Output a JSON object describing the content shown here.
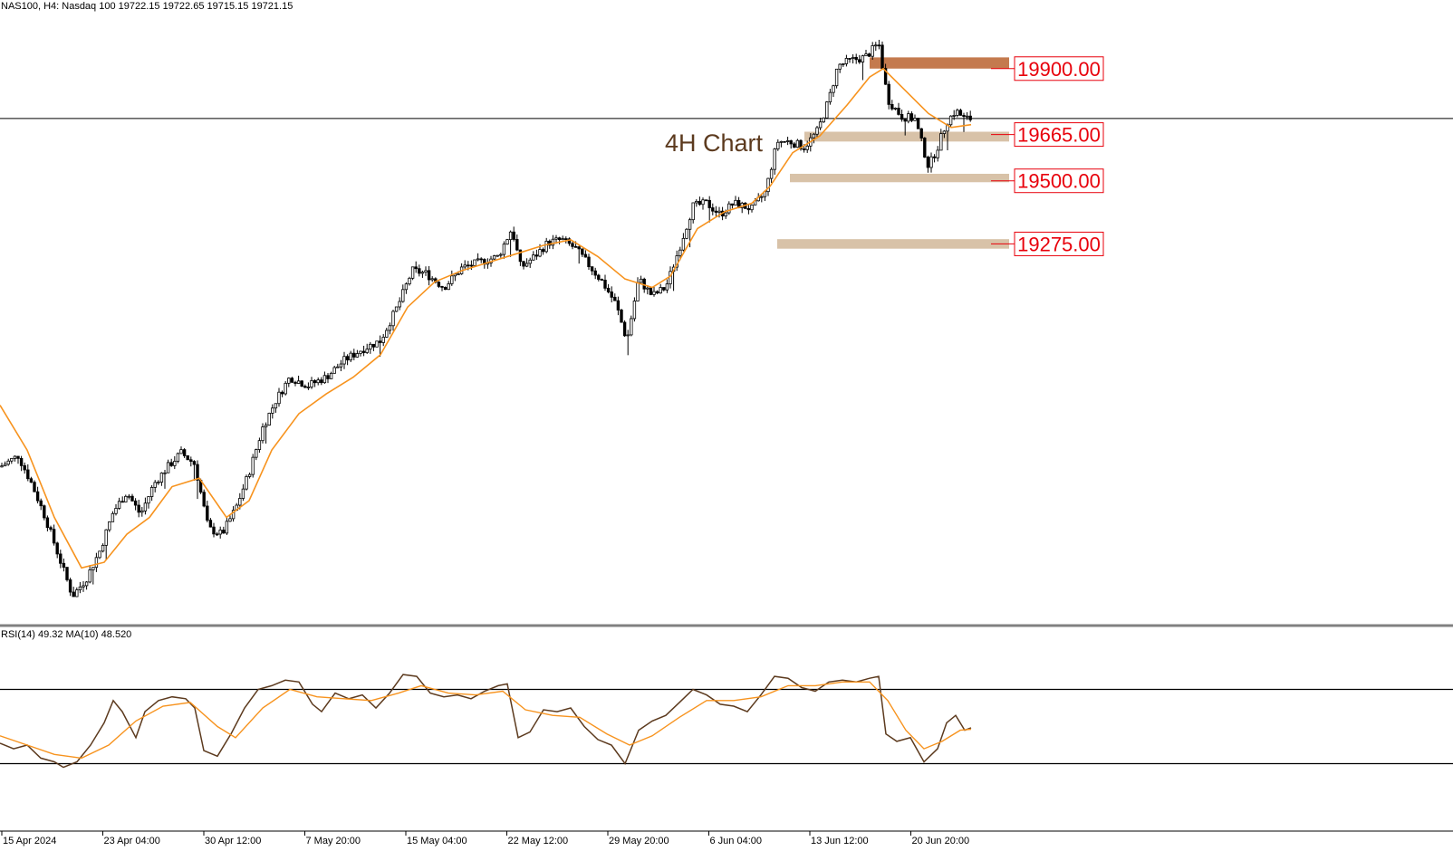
{
  "header": {
    "symbol_line": "NAS100, H4:  Nasdaq 100  19722.15 19722.65 19715.15 19721.15"
  },
  "annotation": "4H Chart",
  "colors": {
    "background": "#ffffff",
    "candle": "#000000",
    "ma_line": "#f7931e",
    "rsi_line": "#5c3a1e",
    "rsi_ma_line": "#f7931e",
    "zone_light": "#d8c2a8",
    "zone_dark": "#c47a4e",
    "level_text": "#e8000b",
    "annotation_text": "#5c3a1e",
    "separator": "#808080"
  },
  "chart_data": [
    {
      "type": "candlestick",
      "symbol": "NAS100",
      "timeframe": "H4",
      "ylim": [
        17950,
        20080
      ],
      "moving_average": "orange line",
      "price_levels": [
        {
          "label": "19900.00",
          "value": 19900,
          "zone": [
            19900,
            19940
          ],
          "style": "dark"
        },
        {
          "label": "19665.00",
          "value": 19665,
          "zone": [
            19640,
            19675
          ],
          "style": "light"
        },
        {
          "label": "19500.00",
          "value": 19500,
          "zone": [
            19495,
            19525
          ],
          "style": "light"
        },
        {
          "label": "19275.00",
          "value": 19275,
          "zone": [
            19258,
            19292
          ],
          "style": "light"
        }
      ],
      "horizontal_line": 19722,
      "x_ticks": [
        "15 Apr 2024",
        "23 Apr 04:00",
        "30 Apr 12:00",
        "7 May 20:00",
        "15 May 04:00",
        "22 May 12:00",
        "29 May 20:00",
        "6 Jun 04:00",
        "13 Jun 12:00",
        "20 Jun 20:00"
      ],
      "close_path": [
        [
          0,
          18480
        ],
        [
          20,
          18520
        ],
        [
          35,
          18420
        ],
        [
          50,
          18300
        ],
        [
          65,
          18160
        ],
        [
          80,
          18020
        ],
        [
          95,
          18080
        ],
        [
          110,
          18180
        ],
        [
          125,
          18320
        ],
        [
          140,
          18390
        ],
        [
          155,
          18310
        ],
        [
          170,
          18420
        ],
        [
          185,
          18480
        ],
        [
          200,
          18530
        ],
        [
          215,
          18490
        ],
        [
          230,
          18260
        ],
        [
          245,
          18240
        ],
        [
          260,
          18330
        ],
        [
          275,
          18460
        ],
        [
          290,
          18620
        ],
        [
          305,
          18720
        ],
        [
          320,
          18800
        ],
        [
          340,
          18770
        ],
        [
          360,
          18800
        ],
        [
          380,
          18860
        ],
        [
          400,
          18900
        ],
        [
          420,
          18930
        ],
        [
          440,
          19060
        ],
        [
          455,
          19180
        ],
        [
          470,
          19170
        ],
        [
          490,
          19120
        ],
        [
          510,
          19190
        ],
        [
          530,
          19210
        ],
        [
          550,
          19230
        ],
        [
          565,
          19330
        ],
        [
          575,
          19190
        ],
        [
          590,
          19230
        ],
        [
          605,
          19280
        ],
        [
          620,
          19290
        ],
        [
          635,
          19260
        ],
        [
          650,
          19200
        ],
        [
          665,
          19140
        ],
        [
          680,
          19060
        ],
        [
          692,
          18930
        ],
        [
          705,
          19150
        ],
        [
          720,
          19090
        ],
        [
          735,
          19120
        ],
        [
          750,
          19260
        ],
        [
          765,
          19410
        ],
        [
          780,
          19420
        ],
        [
          795,
          19380
        ],
        [
          810,
          19420
        ],
        [
          830,
          19400
        ],
        [
          845,
          19460
        ],
        [
          858,
          19640
        ],
        [
          872,
          19640
        ],
        [
          888,
          19620
        ],
        [
          903,
          19680
        ],
        [
          915,
          19790
        ],
        [
          925,
          19910
        ],
        [
          940,
          19930
        ],
        [
          955,
          19940
        ],
        [
          970,
          19990
        ],
        [
          980,
          19790
        ],
        [
          995,
          19730
        ],
        [
          1010,
          19720
        ],
        [
          1025,
          19550
        ],
        [
          1035,
          19620
        ],
        [
          1045,
          19710
        ],
        [
          1055,
          19750
        ],
        [
          1065,
          19720
        ],
        [
          1072,
          19722
        ]
      ],
      "ma_path": [
        [
          0,
          18700
        ],
        [
          30,
          18540
        ],
        [
          60,
          18300
        ],
        [
          90,
          18120
        ],
        [
          115,
          18140
        ],
        [
          140,
          18240
        ],
        [
          165,
          18300
        ],
        [
          190,
          18410
        ],
        [
          220,
          18440
        ],
        [
          250,
          18300
        ],
        [
          275,
          18360
        ],
        [
          300,
          18540
        ],
        [
          330,
          18670
        ],
        [
          360,
          18740
        ],
        [
          390,
          18800
        ],
        [
          420,
          18880
        ],
        [
          450,
          19050
        ],
        [
          480,
          19140
        ],
        [
          510,
          19180
        ],
        [
          540,
          19210
        ],
        [
          570,
          19240
        ],
        [
          600,
          19270
        ],
        [
          630,
          19290
        ],
        [
          660,
          19230
        ],
        [
          690,
          19150
        ],
        [
          720,
          19120
        ],
        [
          740,
          19160
        ],
        [
          770,
          19330
        ],
        [
          800,
          19390
        ],
        [
          830,
          19420
        ],
        [
          850,
          19480
        ],
        [
          875,
          19600
        ],
        [
          905,
          19660
        ],
        [
          935,
          19770
        ],
        [
          960,
          19870
        ],
        [
          975,
          19900
        ],
        [
          1000,
          19820
        ],
        [
          1025,
          19740
        ],
        [
          1050,
          19690
        ],
        [
          1072,
          19700
        ]
      ]
    },
    {
      "type": "line",
      "indicator": "RSI(14) MA(10)",
      "label": "RSI(14) 49.32 MA(10) 48.520",
      "ylim": [
        0,
        100
      ],
      "levels": [
        70,
        30
      ],
      "series": [
        {
          "name": "RSI(14)",
          "points": [
            [
              0,
              41
            ],
            [
              15,
              38
            ],
            [
              30,
              40
            ],
            [
              45,
              33
            ],
            [
              60,
              31
            ],
            [
              70,
              28
            ],
            [
              85,
              31
            ],
            [
              100,
              40
            ],
            [
              115,
              52
            ],
            [
              125,
              64
            ],
            [
              135,
              58
            ],
            [
              150,
              44
            ],
            [
              160,
              58
            ],
            [
              175,
              64
            ],
            [
              190,
              66
            ],
            [
              205,
              65
            ],
            [
              215,
              60
            ],
            [
              225,
              37
            ],
            [
              240,
              34
            ],
            [
              255,
              46
            ],
            [
              270,
              60
            ],
            [
              285,
              70
            ],
            [
              300,
              72
            ],
            [
              315,
              75
            ],
            [
              330,
              74
            ],
            [
              345,
              62
            ],
            [
              355,
              58
            ],
            [
              370,
              68
            ],
            [
              385,
              65
            ],
            [
              400,
              67
            ],
            [
              415,
              60
            ],
            [
              430,
              68
            ],
            [
              445,
              78
            ],
            [
              460,
              77
            ],
            [
              475,
              68
            ],
            [
              490,
              66
            ],
            [
              505,
              67
            ],
            [
              520,
              65
            ],
            [
              535,
              69
            ],
            [
              550,
              72
            ],
            [
              560,
              73
            ],
            [
              572,
              44
            ],
            [
              585,
              47
            ],
            [
              600,
              59
            ],
            [
              615,
              58
            ],
            [
              630,
              60
            ],
            [
              645,
              50
            ],
            [
              660,
              43
            ],
            [
              675,
              40
            ],
            [
              690,
              30
            ],
            [
              705,
              48
            ],
            [
              720,
              53
            ],
            [
              735,
              56
            ],
            [
              750,
              63
            ],
            [
              765,
              70
            ],
            [
              780,
              67
            ],
            [
              795,
              62
            ],
            [
              810,
              61
            ],
            [
              825,
              58
            ],
            [
              840,
              67
            ],
            [
              855,
              77
            ],
            [
              870,
              76
            ],
            [
              885,
              71
            ],
            [
              900,
              69
            ],
            [
              915,
              74
            ],
            [
              930,
              75
            ],
            [
              945,
              74
            ],
            [
              960,
              76
            ],
            [
              970,
              77
            ],
            [
              978,
              46
            ],
            [
              990,
              42
            ],
            [
              1005,
              44
            ],
            [
              1020,
              31
            ],
            [
              1035,
              38
            ],
            [
              1045,
              52
            ],
            [
              1055,
              56
            ],
            [
              1065,
              48
            ],
            [
              1072,
              49.32
            ]
          ]
        },
        {
          "name": "MA(10)",
          "points": [
            [
              0,
              45
            ],
            [
              30,
              40
            ],
            [
              60,
              35
            ],
            [
              90,
              33
            ],
            [
              120,
              40
            ],
            [
              150,
              53
            ],
            [
              180,
              61
            ],
            [
              210,
              63
            ],
            [
              240,
              50
            ],
            [
              260,
              44
            ],
            [
              290,
              60
            ],
            [
              320,
              70
            ],
            [
              350,
              66
            ],
            [
              380,
              65
            ],
            [
              410,
              64
            ],
            [
              440,
              68
            ],
            [
              465,
              72
            ],
            [
              495,
              68
            ],
            [
              525,
              67
            ],
            [
              555,
              69
            ],
            [
              580,
              59
            ],
            [
              610,
              56
            ],
            [
              640,
              55
            ],
            [
              670,
              46
            ],
            [
              695,
              40
            ],
            [
              720,
              45
            ],
            [
              750,
              55
            ],
            [
              780,
              64
            ],
            [
              810,
              64
            ],
            [
              840,
              66
            ],
            [
              870,
              72
            ],
            [
              900,
              72
            ],
            [
              930,
              74
            ],
            [
              960,
              74
            ],
            [
              980,
              64
            ],
            [
              1000,
              48
            ],
            [
              1020,
              38
            ],
            [
              1040,
              42
            ],
            [
              1060,
              48
            ],
            [
              1072,
              48.52
            ]
          ]
        }
      ],
      "x_ticks": [
        "15 Apr 2024",
        "23 Apr 04:00",
        "30 Apr 12:00",
        "7 May 20:00",
        "15 May 04:00",
        "22 May 12:00",
        "29 May 20:00",
        "6 Jun 04:00",
        "13 Jun 12:00",
        "20 Jun 20:00"
      ]
    }
  ]
}
